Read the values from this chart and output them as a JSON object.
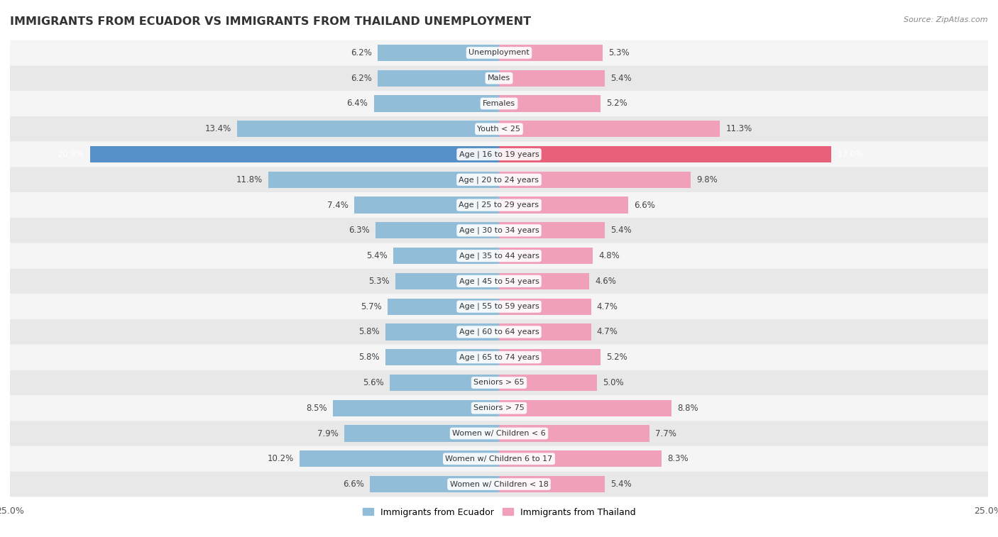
{
  "title": "IMMIGRANTS FROM ECUADOR VS IMMIGRANTS FROM THAILAND UNEMPLOYMENT",
  "source": "Source: ZipAtlas.com",
  "categories": [
    "Unemployment",
    "Males",
    "Females",
    "Youth < 25",
    "Age | 16 to 19 years",
    "Age | 20 to 24 years",
    "Age | 25 to 29 years",
    "Age | 30 to 34 years",
    "Age | 35 to 44 years",
    "Age | 45 to 54 years",
    "Age | 55 to 59 years",
    "Age | 60 to 64 years",
    "Age | 65 to 74 years",
    "Seniors > 65",
    "Seniors > 75",
    "Women w/ Children < 6",
    "Women w/ Children 6 to 17",
    "Women w/ Children < 18"
  ],
  "ecuador_values": [
    6.2,
    6.2,
    6.4,
    13.4,
    20.9,
    11.8,
    7.4,
    6.3,
    5.4,
    5.3,
    5.7,
    5.8,
    5.8,
    5.6,
    8.5,
    7.9,
    10.2,
    6.6
  ],
  "thailand_values": [
    5.3,
    5.4,
    5.2,
    11.3,
    17.0,
    9.8,
    6.6,
    5.4,
    4.8,
    4.6,
    4.7,
    4.7,
    5.2,
    5.0,
    8.8,
    7.7,
    8.3,
    5.4
  ],
  "ecuador_color": "#92bdd9",
  "thailand_color": "#f0a0b8",
  "ecuador_highlight_color": "#5590c8",
  "thailand_highlight_color": "#e8607a",
  "highlight_row": 4,
  "axis_limit": 25.0,
  "bar_height": 0.65,
  "legend_ecuador": "Immigrants from Ecuador",
  "legend_thailand": "Immigrants from Thailand",
  "background_color": "#ffffff",
  "row_bg_light": "#f5f5f5",
  "row_bg_dark": "#e8e8e8",
  "label_color": "#444444",
  "highlight_label_color": "#ffffff"
}
